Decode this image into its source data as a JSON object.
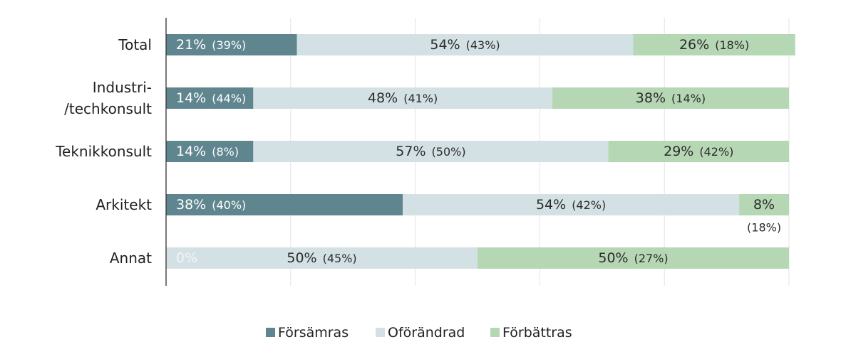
{
  "chart_data": {
    "type": "bar",
    "stacked": true,
    "orientation": "horizontal",
    "normalized": true,
    "xlim": [
      0,
      100
    ],
    "grid": true,
    "legend_position": "bottom",
    "categories": [
      {
        "lines": [
          "Total"
        ]
      },
      {
        "lines": [
          "Industri-",
          "/techkonsult"
        ]
      },
      {
        "lines": [
          "Teknikkonsult"
        ]
      },
      {
        "lines": [
          "Arkitekt"
        ]
      },
      {
        "lines": [
          "Annat"
        ]
      }
    ],
    "series": [
      {
        "name": "Försämras",
        "color": "#5f858f",
        "values": [
          21,
          14,
          14,
          38,
          0
        ],
        "labels": [
          "21%",
          "14%",
          "14%",
          "38%",
          "0%"
        ],
        "prev_labels": [
          "(39%)",
          "(44%)",
          "(8%)",
          "(40%)",
          ""
        ]
      },
      {
        "name": "Oförändrad",
        "color": "#d3e1e5",
        "values": [
          54,
          48,
          57,
          54,
          50
        ],
        "labels": [
          "54%",
          "48%",
          "57%",
          "54%",
          "50%"
        ],
        "prev_labels": [
          "(43%)",
          "(41%)",
          "(50%)",
          "(42%)",
          "(45%)"
        ]
      },
      {
        "name": "Förbättras",
        "color": "#b6d7b4",
        "values": [
          26,
          38,
          29,
          8,
          50
        ],
        "labels": [
          "26%",
          "38%",
          "29%",
          "8%",
          "50%"
        ],
        "prev_labels": [
          "(18%)",
          "(14%)",
          "(42%)",
          "(18%)",
          "(27%)"
        ]
      }
    ]
  }
}
